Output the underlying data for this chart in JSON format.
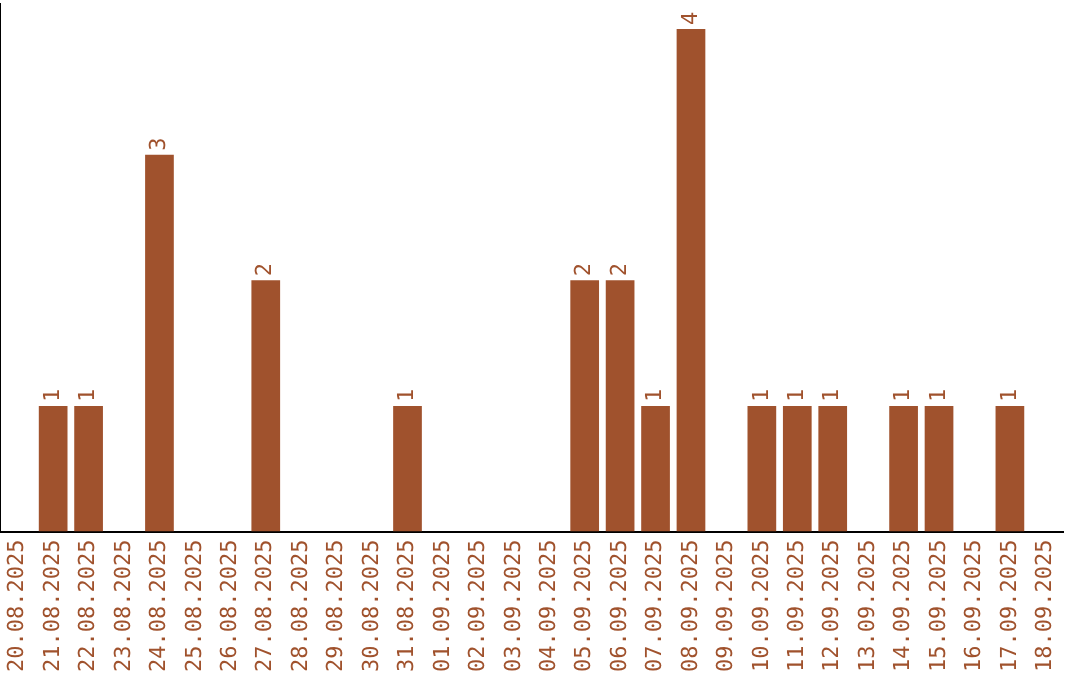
{
  "chart_data": {
    "type": "bar",
    "categories": [
      "20.08.2025",
      "21.08.2025",
      "22.08.2025",
      "23.08.2025",
      "24.08.2025",
      "25.08.2025",
      "26.08.2025",
      "27.08.2025",
      "28.08.2025",
      "29.08.2025",
      "30.08.2025",
      "31.08.2025",
      "01.09.2025",
      "02.09.2025",
      "03.09.2025",
      "04.09.2025",
      "05.09.2025",
      "06.09.2025",
      "07.09.2025",
      "08.09.2025",
      "09.09.2025",
      "10.09.2025",
      "11.09.2025",
      "12.09.2025",
      "13.09.2025",
      "14.09.2025",
      "15.09.2025",
      "16.09.2025",
      "17.09.2025",
      "18.09.2025"
    ],
    "values": [
      0,
      1,
      1,
      0,
      3,
      0,
      0,
      2,
      0,
      0,
      0,
      1,
      0,
      0,
      0,
      0,
      2,
      2,
      1,
      4,
      0,
      1,
      1,
      1,
      0,
      1,
      1,
      0,
      1,
      0
    ],
    "value_labels": [
      null,
      "1",
      "1",
      null,
      "3",
      null,
      null,
      "2",
      null,
      null,
      null,
      "1",
      null,
      null,
      null,
      null,
      "2",
      "2",
      "1",
      "4",
      null,
      "1",
      "1",
      "1",
      null,
      "1",
      "1",
      null,
      "1",
      null
    ],
    "color": "#a0522d",
    "ylim": [
      0,
      4.2
    ],
    "tick_labels": "x",
    "grid": false,
    "legend": false
  }
}
